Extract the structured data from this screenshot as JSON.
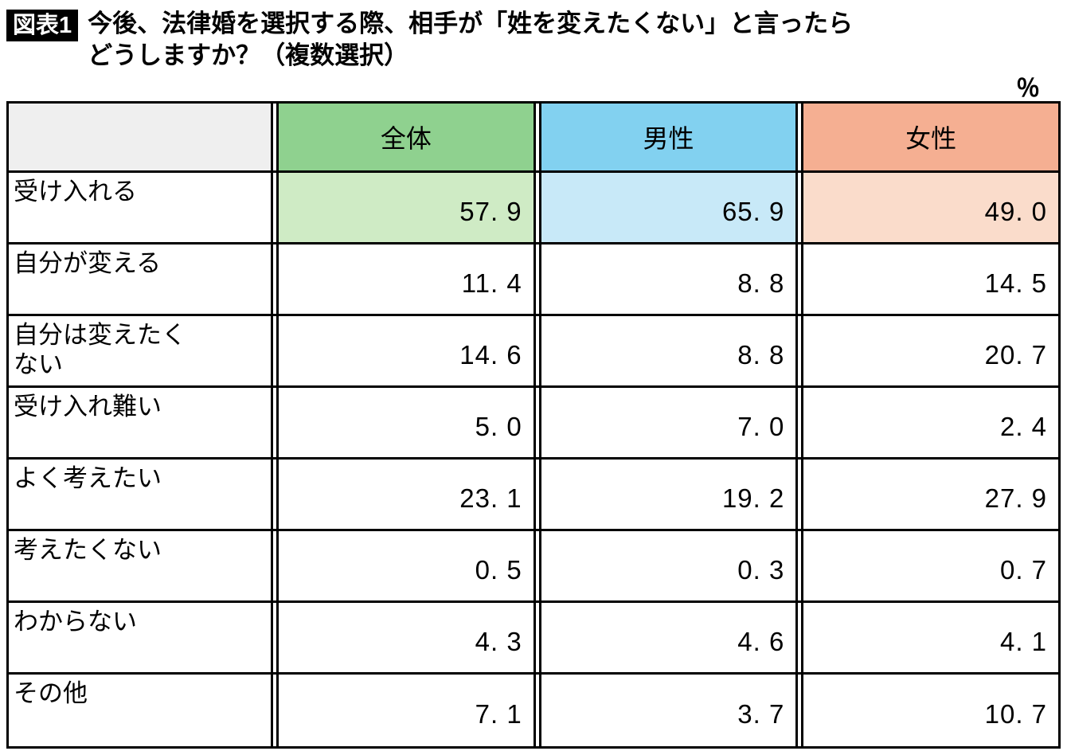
{
  "header": {
    "figure_label": "図表1",
    "title_line1": "今後、法律婚を選択する際、相手が「姓を変えたくない」と言ったら",
    "title_line2": "どうしますか？（複数選択）",
    "unit_label": "％"
  },
  "colors": {
    "zentai_header": "#8fd18f",
    "zentai_row1": "#cfebc5",
    "dansei_header": "#82d1f0",
    "dansei_row1": "#c8e9f8",
    "josei_header": "#f5af92",
    "josei_row1": "#fadccb",
    "corner_gray": "#efefef",
    "border": "#000000"
  },
  "table": {
    "column_headers": [
      "全体",
      "男性",
      "女性"
    ],
    "rows": [
      {
        "label": "受け入れる",
        "values": [
          "57. 9",
          "65. 9",
          "49. 0"
        ]
      },
      {
        "label": "自分が変える",
        "values": [
          "11. 4",
          "8. 8",
          "14. 5"
        ]
      },
      {
        "label": "自分は変えたく\nない",
        "values": [
          "14. 6",
          "8. 8",
          "20. 7"
        ]
      },
      {
        "label": "受け入れ難い",
        "values": [
          "5. 0",
          "7. 0",
          "2. 4"
        ]
      },
      {
        "label": "よく考えたい",
        "values": [
          "23. 1",
          "19. 2",
          "27. 9"
        ]
      },
      {
        "label": "考えたくない",
        "values": [
          "0. 5",
          "0. 3",
          "0. 7"
        ]
      },
      {
        "label": "わからない",
        "values": [
          "4. 3",
          "4. 6",
          "4. 1"
        ]
      },
      {
        "label": "その他",
        "values": [
          "7. 1",
          "3. 7",
          "10. 7"
        ]
      }
    ]
  },
  "chart_data": {
    "type": "table",
    "title": "今後、法律婚を選択する際、相手が「姓を変えたくない」と言ったらどうしますか？（複数選択）",
    "unit": "%",
    "categories": [
      "受け入れる",
      "自分が変える",
      "自分は変えたくない",
      "受け入れ難い",
      "よく考えたい",
      "考えたくない",
      "わからない",
      "その他"
    ],
    "series": [
      {
        "name": "全体",
        "values": [
          57.9,
          11.4,
          14.6,
          5.0,
          23.1,
          0.5,
          4.3,
          7.1
        ]
      },
      {
        "name": "男性",
        "values": [
          65.9,
          8.8,
          8.8,
          7.0,
          19.2,
          0.3,
          4.6,
          3.7
        ]
      },
      {
        "name": "女性",
        "values": [
          49.0,
          14.5,
          20.7,
          2.4,
          27.9,
          0.7,
          4.1,
          10.7
        ]
      }
    ],
    "legend_position": "top",
    "grid": true
  }
}
